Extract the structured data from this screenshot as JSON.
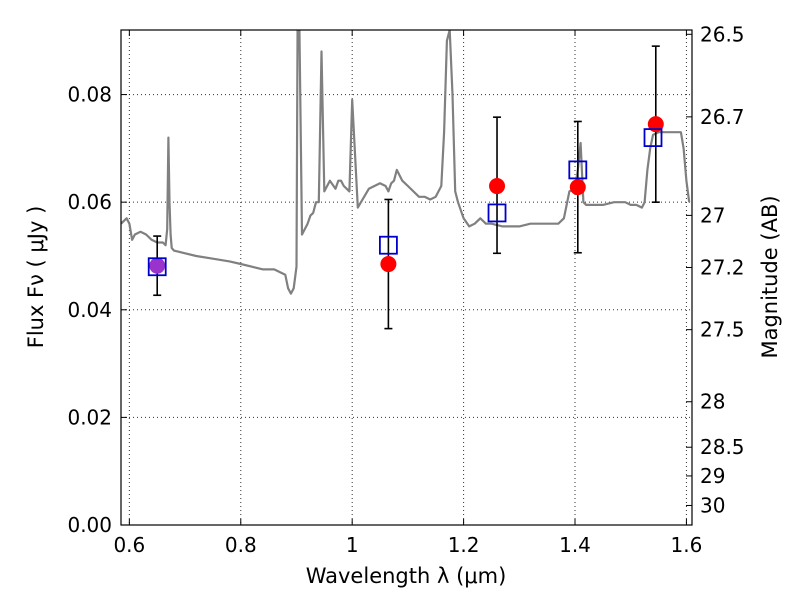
{
  "chart_data": {
    "type": "scatter",
    "title": "",
    "xlabel": "Wavelength  λ (μm)",
    "ylabel": "Flux  Fν  ( μJy )",
    "y2label": "Magnitude (AB)",
    "xlim": [
      0.585,
      1.61
    ],
    "ylim": [
      0.0,
      0.092
    ],
    "grid": true,
    "x_ticks": [
      0.6,
      0.8,
      1.0,
      1.2,
      1.4,
      1.6
    ],
    "x_tick_labels": [
      "0.6",
      "0.8",
      "1",
      "1.2",
      "1.4",
      "1.6"
    ],
    "y_ticks": [
      0.0,
      0.02,
      0.04,
      0.06,
      0.08
    ],
    "y_tick_labels": [
      "0.00",
      "0.02",
      "0.04",
      "0.06",
      "0.08"
    ],
    "y2_ticks": [
      26.5,
      26.7,
      27,
      27.2,
      27.5,
      28,
      28.5,
      29,
      30
    ],
    "y2_tick_labels": [
      "26.5",
      "26.7",
      "27",
      "27.2",
      "27.5",
      "28",
      "28.5",
      "29",
      "30"
    ],
    "colors": {
      "spectrum": "#808080",
      "observed": "#ff0000",
      "model": "#0000cc",
      "errorbar": "#000000",
      "overlap": "#9933cc"
    },
    "series": [
      {
        "kind": "spectrum",
        "x": [
          0.585,
          0.595,
          0.6,
          0.605,
          0.61,
          0.62,
          0.63,
          0.64,
          0.65,
          0.66,
          0.665,
          0.668,
          0.67,
          0.672,
          0.674,
          0.676,
          0.68,
          0.7,
          0.72,
          0.75,
          0.78,
          0.8,
          0.82,
          0.84,
          0.86,
          0.88,
          0.885,
          0.89,
          0.895,
          0.9,
          0.902,
          0.905,
          0.91,
          0.915,
          0.92,
          0.925,
          0.93,
          0.935,
          0.94,
          0.945,
          0.95,
          0.96,
          0.97,
          0.975,
          0.98,
          0.985,
          0.99,
          0.995,
          1.0,
          1.01,
          1.03,
          1.05,
          1.06,
          1.065,
          1.07,
          1.075,
          1.08,
          1.09,
          1.1,
          1.12,
          1.13,
          1.14,
          1.15,
          1.16,
          1.165,
          1.17,
          1.175,
          1.18,
          1.185,
          1.19,
          1.2,
          1.21,
          1.22,
          1.23,
          1.24,
          1.25,
          1.27,
          1.3,
          1.32,
          1.35,
          1.37,
          1.38,
          1.39,
          1.4,
          1.405,
          1.41,
          1.415,
          1.42,
          1.43,
          1.45,
          1.47,
          1.49,
          1.5,
          1.51,
          1.52,
          1.525,
          1.53,
          1.535,
          1.54,
          1.55,
          1.56,
          1.57,
          1.58,
          1.59,
          1.595,
          1.6,
          1.605
        ],
        "y": [
          0.056,
          0.057,
          0.056,
          0.053,
          0.054,
          0.0545,
          0.054,
          0.053,
          0.0525,
          0.0525,
          0.052,
          0.055,
          0.072,
          0.06,
          0.054,
          0.0515,
          0.051,
          0.0505,
          0.05,
          0.0495,
          0.049,
          0.0485,
          0.048,
          0.0475,
          0.0475,
          0.0465,
          0.044,
          0.043,
          0.044,
          0.048,
          0.094,
          0.094,
          0.054,
          0.055,
          0.056,
          0.0575,
          0.058,
          0.06,
          0.06,
          0.088,
          0.062,
          0.064,
          0.0625,
          0.064,
          0.064,
          0.063,
          0.0625,
          0.062,
          0.079,
          0.059,
          0.0625,
          0.0635,
          0.063,
          0.062,
          0.0635,
          0.064,
          0.066,
          0.064,
          0.063,
          0.061,
          0.061,
          0.0605,
          0.061,
          0.063,
          0.073,
          0.09,
          0.092,
          0.08,
          0.062,
          0.06,
          0.057,
          0.0555,
          0.056,
          0.057,
          0.056,
          0.056,
          0.0555,
          0.0555,
          0.056,
          0.056,
          0.056,
          0.057,
          0.062,
          0.0625,
          0.066,
          0.071,
          0.06,
          0.0595,
          0.0595,
          0.0595,
          0.06,
          0.06,
          0.0595,
          0.0595,
          0.059,
          0.06,
          0.066,
          0.07,
          0.0725,
          0.073,
          0.073,
          0.073,
          0.073,
          0.073,
          0.07,
          0.064,
          0.06
        ]
      },
      {
        "kind": "model",
        "marker": "square",
        "x": [
          0.65,
          1.065,
          1.26,
          1.405,
          1.54
        ],
        "y": [
          0.048,
          0.052,
          0.058,
          0.066,
          0.072
        ]
      },
      {
        "kind": "observed",
        "marker": "circle",
        "x": [
          0.65,
          1.065,
          1.26,
          1.405,
          1.545
        ],
        "y": [
          0.0482,
          0.0485,
          0.063,
          0.0628,
          0.0745
        ],
        "yerr_low": [
          0.0055,
          0.012,
          0.0125,
          0.0122,
          0.0145
        ],
        "yerr_high": [
          0.0055,
          0.012,
          0.0128,
          0.0122,
          0.0145
        ]
      }
    ]
  }
}
